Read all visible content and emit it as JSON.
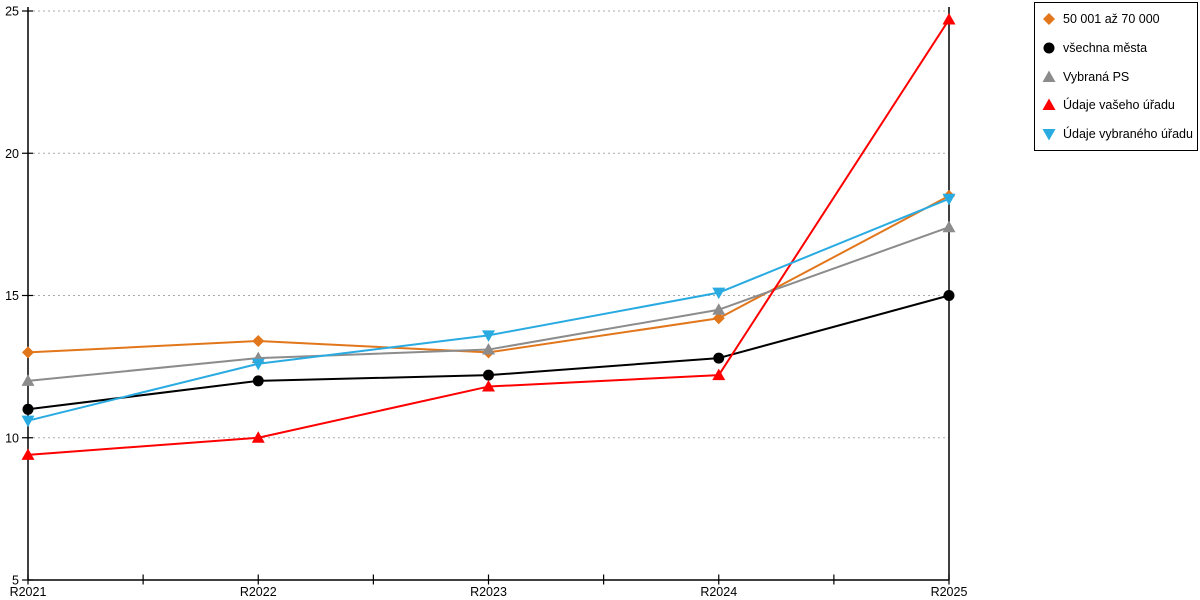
{
  "chart_data": {
    "type": "line",
    "title": "",
    "xlabel": "",
    "ylabel": "",
    "x_categories": [
      "R2021",
      "R2022",
      "R2023",
      "R2024",
      "R2025"
    ],
    "ylim": [
      5,
      25
    ],
    "yticks": [
      5,
      10,
      15,
      20,
      25
    ],
    "grid": "horizontal dotted",
    "legend_position": "outside top-right",
    "axis_color": "#000000",
    "gridline_color": "#aaaaaa",
    "series": [
      {
        "name": "50 001 až 70 000",
        "marker": "diamond",
        "color": "#e2761b",
        "values": [
          13.0,
          13.4,
          13.0,
          14.2,
          18.5
        ]
      },
      {
        "name": "všechna města",
        "marker": "circle",
        "color": "#000000",
        "values": [
          11.0,
          12.0,
          12.2,
          12.8,
          15.0
        ]
      },
      {
        "name": "Vybraná PS",
        "marker": "triangle-up",
        "color": "#8c8c8c",
        "values": [
          12.0,
          12.8,
          13.1,
          14.5,
          17.4
        ]
      },
      {
        "name": "Údaje vašeho úřadu",
        "marker": "triangle-up",
        "color": "#ff0000",
        "values": [
          9.4,
          10.0,
          11.8,
          12.2,
          24.7
        ]
      },
      {
        "name": "Údaje vybraného úřadu",
        "marker": "triangle-down",
        "color": "#29abe2",
        "values": [
          10.6,
          12.6,
          13.6,
          15.1,
          18.4
        ]
      }
    ]
  }
}
